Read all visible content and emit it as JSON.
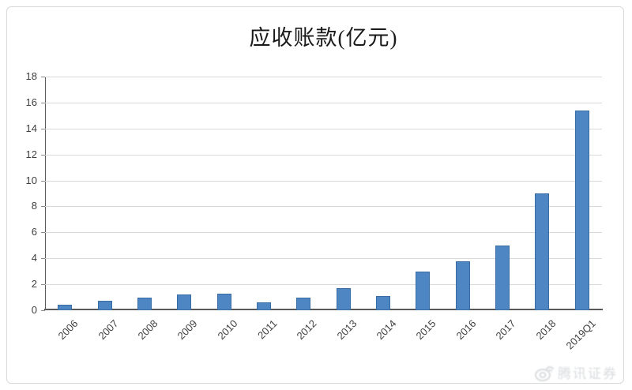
{
  "chart_data": {
    "type": "bar",
    "title": "应收账款(亿元)",
    "categories": [
      "2006",
      "2007",
      "2008",
      "2009",
      "2010",
      "2011",
      "2012",
      "2013",
      "2014",
      "2015",
      "2016",
      "2017",
      "2018",
      "2019Q1"
    ],
    "values": [
      0.4,
      0.7,
      1.0,
      1.2,
      1.3,
      0.6,
      1.0,
      1.7,
      1.1,
      3.0,
      3.8,
      5.0,
      9.0,
      15.4
    ],
    "xlabel": "",
    "ylabel": "",
    "ylim": [
      0,
      18
    ],
    "ytick_step": 2,
    "yticks": [
      0,
      2,
      4,
      6,
      8,
      10,
      12,
      14,
      16,
      18
    ],
    "grid": true,
    "legend": "none",
    "bar_color": "#4e86c4",
    "gridline_color": "#d9d9d9",
    "axis_color": "#595959",
    "label_color": "#404040"
  },
  "watermark": {
    "icon": "weibo-logo-icon",
    "text": "腾讯证券",
    "color": "#b9bdc2"
  }
}
